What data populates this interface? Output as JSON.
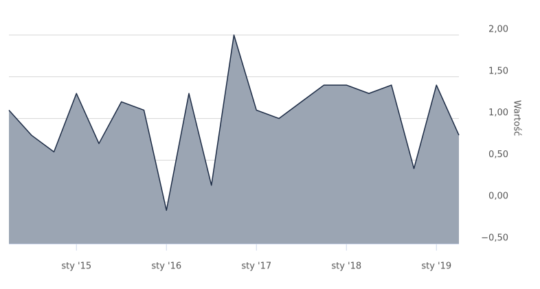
{
  "chart_data": {
    "type": "area",
    "y_label": "Wartość",
    "categories": [
      null,
      null,
      null,
      "sty '15",
      null,
      null,
      null,
      "sty '16",
      null,
      null,
      null,
      "sty '17",
      null,
      null,
      null,
      "sty '18",
      null,
      null,
      null,
      "sty '19",
      null
    ],
    "values": [
      1.1,
      0.8,
      0.6,
      1.3,
      0.7,
      1.2,
      1.1,
      -0.1,
      1.3,
      0.2,
      2.0,
      1.1,
      1.0,
      1.2,
      1.4,
      1.4,
      1.3,
      1.4,
      0.4,
      1.4,
      0.8
    ],
    "color": "#9ba5b3",
    "line_color": "#1b2a44",
    "ylim": [
      -0.5,
      2.0
    ],
    "yticks": [
      {
        "value": -0.5,
        "label": "−0,50"
      },
      {
        "value": 0,
        "label": "0,00"
      },
      {
        "value": 0.5,
        "label": "0,50"
      },
      {
        "value": 1,
        "label": "1,00"
      },
      {
        "value": 1.5,
        "label": "1,50"
      },
      {
        "value": 2,
        "label": "2,00"
      }
    ],
    "grid": true
  }
}
